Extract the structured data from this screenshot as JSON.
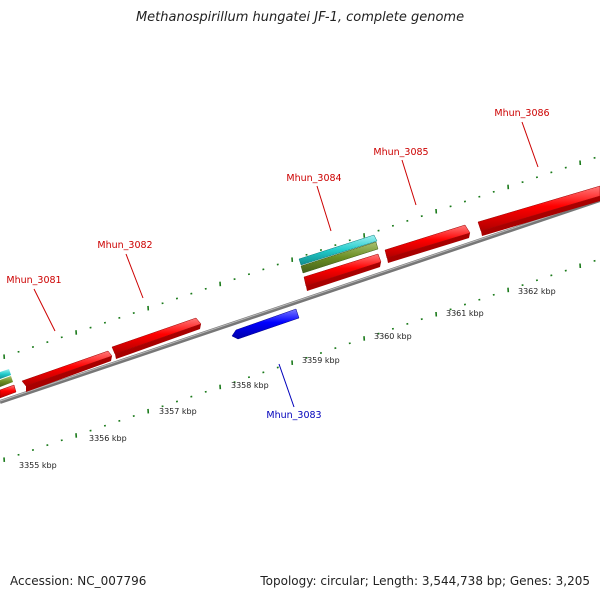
{
  "title": "Methanospirillum hungatei JF-1, complete genome",
  "footer": {
    "accession": "Accession: NC_007796",
    "summary": "Topology: circular; Length: 3,544,738 bp; Genes: 3,205"
  },
  "colors": {
    "forward_gene": "#ff0000",
    "reverse_gene": "#0000ff",
    "forward_label": "#cc0000",
    "reverse_label": "#0000bb",
    "feature_cyan": "#22cccc",
    "feature_olive": "#6b8e23",
    "backbone": "#888888",
    "tick": "#1a7a1a"
  },
  "scale": {
    "unit": "kbp",
    "labels": [
      "3355 kbp",
      "3356 kbp",
      "3357 kbp",
      "3358 kbp",
      "3359 kbp",
      "3360 kbp",
      "3361 kbp",
      "3362 kbp"
    ]
  },
  "genes": [
    {
      "id": "Mhun_3081",
      "strand": "+"
    },
    {
      "id": "Mhun_3082",
      "strand": "+"
    },
    {
      "id": "Mhun_3083",
      "strand": "-"
    },
    {
      "id": "Mhun_3084",
      "strand": "+"
    },
    {
      "id": "Mhun_3085",
      "strand": "+"
    },
    {
      "id": "Mhun_3086",
      "strand": "+"
    }
  ]
}
